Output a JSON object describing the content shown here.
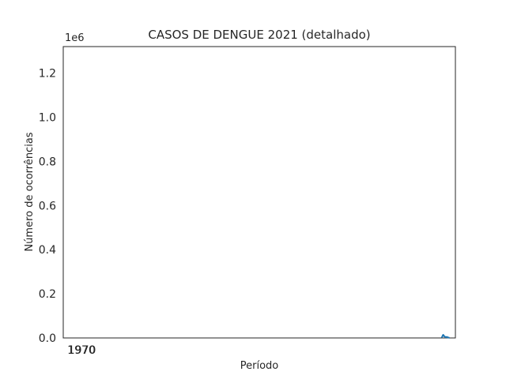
{
  "chart_data": {
    "type": "line",
    "title": "CASOS DE DENGUE 2021 (detalhado)",
    "xlabel": "Período",
    "ylabel": "Número de ocorrências",
    "y_offset_label": "1e6",
    "ylim": [
      0,
      1.32
    ],
    "y_ticks": [
      "0.0",
      "0.2",
      "0.4",
      "0.6",
      "0.8",
      "1.0",
      "1.2"
    ],
    "x_ticks": [
      "1970",
      "1970"
    ],
    "grid": false,
    "series_color": "#1f77b4",
    "series": [
      {
        "x": [
          0.965,
          0.966,
          0.967,
          0.968,
          0.969,
          0.97,
          0.971,
          0.972,
          0.973,
          0.974,
          0.975,
          0.976,
          0.977,
          0.978,
          0.979,
          0.98,
          0.981,
          0.982,
          0.983,
          0.984,
          0.985
        ],
        "values": [
          0.001,
          0.004,
          0.008,
          0.012,
          0.014,
          0.012,
          0.009,
          0.007,
          0.006,
          0.005,
          0.004,
          0.003,
          0.004,
          0.005,
          0.004,
          0.003,
          0.002,
          0.002,
          0.001,
          0.001,
          0.001
        ]
      }
    ]
  }
}
